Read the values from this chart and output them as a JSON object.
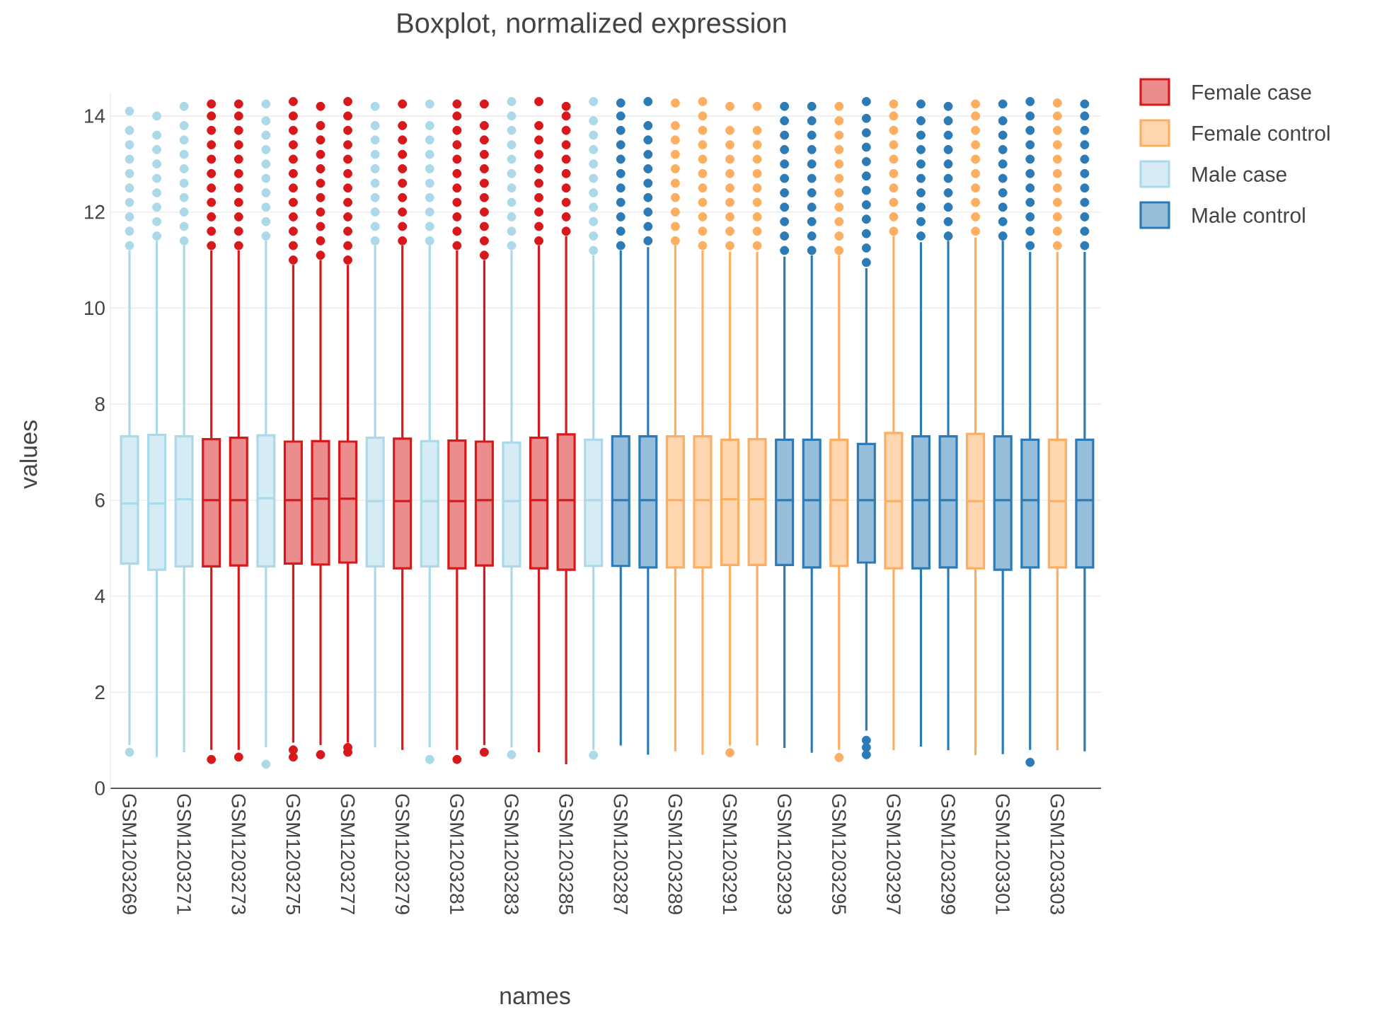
{
  "chart_data": {
    "type": "box",
    "title": "Boxplot, normalized expression",
    "xlabel": "names",
    "ylabel": "values",
    "categories": [
      "GSM1203269",
      null,
      "GSM1203271",
      null,
      "GSM1203273",
      null,
      "GSM1203275",
      null,
      "GSM1203277",
      null,
      "GSM1203279",
      null,
      "GSM1203281",
      null,
      "GSM1203283",
      null,
      "GSM1203285",
      null,
      "GSM1203287",
      null,
      "GSM1203289",
      null,
      "GSM1203291",
      null,
      "GSM1203293",
      null,
      "GSM1203295",
      null,
      "GSM1203297",
      null,
      "GSM1203299",
      null,
      "GSM1203301",
      null,
      "GSM1203303",
      null
    ],
    "ylim": [
      0,
      14.5
    ],
    "yticks": [
      0,
      2,
      4,
      6,
      8,
      10,
      12,
      14
    ],
    "grid": "y",
    "legend": "top right",
    "series": [
      {
        "name": "Female case",
        "color": "#d7191c",
        "boxes": [
          null,
          null,
          null,
          {
            "low": 0.8,
            "q1": 4.62,
            "median": 6.0,
            "q3": 7.27,
            "high": 11.2,
            "outliers": [
              0.6,
              11.3,
              11.6,
              11.9,
              12.2,
              12.5,
              12.8,
              13.1,
              13.4,
              13.7,
              14.0,
              14.25
            ]
          },
          {
            "low": 0.8,
            "q1": 4.64,
            "median": 6.0,
            "q3": 7.3,
            "high": 11.2,
            "outliers": [
              0.65,
              11.3,
              11.6,
              11.9,
              12.2,
              12.5,
              12.8,
              13.1,
              13.4,
              13.7,
              14.0,
              14.25
            ]
          },
          null,
          {
            "low": 0.95,
            "q1": 4.68,
            "median": 6.0,
            "q3": 7.22,
            "high": 10.9,
            "outliers": [
              0.65,
              0.8,
              11.0,
              11.3,
              11.6,
              11.9,
              12.2,
              12.5,
              12.8,
              13.1,
              13.4,
              13.7,
              14.0,
              14.3
            ]
          },
          {
            "low": 0.9,
            "q1": 4.66,
            "median": 6.03,
            "q3": 7.23,
            "high": 11.0,
            "outliers": [
              0.7,
              11.1,
              11.4,
              11.7,
              12.0,
              12.3,
              12.6,
              12.9,
              13.2,
              13.5,
              13.8,
              14.2
            ]
          },
          {
            "low": 0.95,
            "q1": 4.7,
            "median": 6.03,
            "q3": 7.22,
            "high": 10.9,
            "outliers": [
              0.75,
              0.85,
              11.0,
              11.3,
              11.6,
              11.9,
              12.2,
              12.5,
              12.8,
              13.1,
              13.4,
              13.7,
              14.0,
              14.3
            ]
          },
          null,
          {
            "low": 0.8,
            "q1": 4.58,
            "median": 5.98,
            "q3": 7.28,
            "high": 11.3,
            "outliers": [
              11.4,
              11.7,
              12.0,
              12.3,
              12.6,
              12.9,
              13.2,
              13.5,
              13.8,
              14.25
            ]
          },
          null,
          {
            "low": 0.8,
            "q1": 4.58,
            "median": 5.98,
            "q3": 7.24,
            "high": 11.2,
            "outliers": [
              0.6,
              11.3,
              11.6,
              11.9,
              12.2,
              12.5,
              12.8,
              13.1,
              13.4,
              13.7,
              14.0,
              14.25
            ]
          },
          {
            "low": 0.9,
            "q1": 4.64,
            "median": 6.0,
            "q3": 7.22,
            "high": 11.0,
            "outliers": [
              0.75,
              11.1,
              11.4,
              11.7,
              12.0,
              12.3,
              12.6,
              12.9,
              13.2,
              13.5,
              13.8,
              14.25
            ]
          },
          null,
          {
            "low": 0.75,
            "q1": 4.58,
            "median": 6.0,
            "q3": 7.3,
            "high": 11.3,
            "outliers": [
              11.4,
              11.7,
              12.0,
              12.3,
              12.6,
              12.9,
              13.2,
              13.5,
              13.8,
              14.3
            ]
          },
          {
            "low": 0.5,
            "q1": 4.55,
            "median": 6.0,
            "q3": 7.37,
            "high": 11.5,
            "outliers": [
              11.6,
              11.9,
              12.2,
              12.5,
              12.8,
              13.1,
              13.4,
              13.7,
              14.0,
              14.2
            ]
          },
          null,
          null,
          null,
          null,
          null,
          null,
          null,
          null,
          null,
          null,
          null,
          null,
          null,
          null,
          null,
          null,
          null,
          null,
          null
        ]
      },
      {
        "name": "Female control",
        "color": "#fdae61",
        "boxes": [
          null,
          null,
          null,
          null,
          null,
          null,
          null,
          null,
          null,
          null,
          null,
          null,
          null,
          null,
          null,
          null,
          null,
          null,
          null,
          null,
          {
            "low": 0.77,
            "q1": 4.6,
            "median": 6.0,
            "q3": 7.33,
            "high": 11.3,
            "outliers": [
              11.4,
              11.7,
              12.0,
              12.3,
              12.6,
              12.9,
              13.2,
              13.5,
              13.8,
              14.27
            ]
          },
          {
            "low": 0.7,
            "q1": 4.6,
            "median": 6.0,
            "q3": 7.33,
            "high": 11.2,
            "outliers": [
              11.3,
              11.6,
              11.9,
              12.2,
              12.5,
              12.8,
              13.1,
              13.4,
              13.7,
              14.0,
              14.3
            ]
          },
          {
            "low": 0.89,
            "q1": 4.65,
            "median": 6.02,
            "q3": 7.26,
            "high": 11.17,
            "outliers": [
              0.74,
              11.3,
              11.6,
              11.9,
              12.2,
              12.5,
              12.8,
              13.1,
              13.4,
              13.7,
              14.2
            ]
          },
          {
            "low": 0.89,
            "q1": 4.65,
            "median": 6.02,
            "q3": 7.27,
            "high": 11.17,
            "outliers": [
              11.3,
              11.6,
              11.9,
              12.2,
              12.5,
              12.8,
              13.1,
              13.4,
              13.7,
              14.2
            ]
          },
          null,
          null,
          {
            "low": 0.8,
            "q1": 4.63,
            "median": 6.0,
            "q3": 7.26,
            "high": 11.1,
            "outliers": [
              0.64,
              11.2,
              11.5,
              11.8,
              12.1,
              12.4,
              12.7,
              13.0,
              13.3,
              13.6,
              13.9,
              14.2
            ]
          },
          null,
          {
            "low": 0.79,
            "q1": 4.58,
            "median": 5.98,
            "q3": 7.4,
            "high": 11.5,
            "outliers": [
              11.6,
              11.9,
              12.2,
              12.5,
              12.8,
              13.1,
              13.4,
              13.7,
              14.0,
              14.25
            ]
          },
          null,
          null,
          {
            "low": 0.69,
            "q1": 4.58,
            "median": 5.98,
            "q3": 7.38,
            "high": 11.47,
            "outliers": [
              11.6,
              11.9,
              12.2,
              12.5,
              12.8,
              13.1,
              13.4,
              13.7,
              14.0,
              14.25
            ]
          },
          null,
          null,
          {
            "low": 0.79,
            "q1": 4.6,
            "median": 5.98,
            "q3": 7.26,
            "high": 11.17,
            "outliers": [
              11.3,
              11.6,
              11.9,
              12.2,
              12.5,
              12.8,
              13.1,
              13.4,
              13.7,
              14.0,
              14.27
            ]
          },
          null
        ]
      },
      {
        "name": "Male case",
        "color": "#abd9e9",
        "boxes": [
          {
            "low": 0.9,
            "q1": 4.68,
            "median": 5.93,
            "q3": 7.33,
            "high": 11.2,
            "outliers": [
              0.75,
              11.3,
              11.6,
              11.9,
              12.2,
              12.5,
              12.8,
              13.1,
              13.4,
              13.7,
              14.1
            ]
          },
          {
            "low": 0.65,
            "q1": 4.55,
            "median": 5.93,
            "q3": 7.36,
            "high": 11.4,
            "outliers": [
              11.5,
              11.8,
              12.1,
              12.4,
              12.7,
              13.0,
              13.3,
              13.6,
              14.0
            ]
          },
          {
            "low": 0.75,
            "q1": 4.62,
            "median": 6.02,
            "q3": 7.33,
            "high": 11.3,
            "outliers": [
              11.4,
              11.7,
              12.0,
              12.3,
              12.6,
              12.9,
              13.2,
              13.5,
              13.8,
              14.2
            ]
          },
          null,
          null,
          {
            "low": 0.85,
            "q1": 4.62,
            "median": 6.04,
            "q3": 7.35,
            "high": 11.4,
            "outliers": [
              0.5,
              11.5,
              11.8,
              12.1,
              12.4,
              12.7,
              13.0,
              13.3,
              13.6,
              13.9,
              14.25
            ]
          },
          null,
          null,
          null,
          {
            "low": 0.85,
            "q1": 4.62,
            "median": 5.98,
            "q3": 7.3,
            "high": 11.3,
            "outliers": [
              11.4,
              11.7,
              12.0,
              12.3,
              12.6,
              12.9,
              13.2,
              13.5,
              13.8,
              14.2
            ]
          },
          null,
          {
            "low": 0.85,
            "q1": 4.62,
            "median": 5.98,
            "q3": 7.23,
            "high": 11.3,
            "outliers": [
              0.6,
              11.4,
              11.7,
              12.0,
              12.3,
              12.6,
              12.9,
              13.2,
              13.5,
              13.8,
              14.25
            ]
          },
          null,
          null,
          {
            "low": 0.85,
            "q1": 4.62,
            "median": 5.98,
            "q3": 7.2,
            "high": 11.2,
            "outliers": [
              0.7,
              11.3,
              11.6,
              11.9,
              12.2,
              12.5,
              12.8,
              13.1,
              13.4,
              13.7,
              14.0,
              14.3
            ]
          },
          null,
          null,
          {
            "low": 0.8,
            "q1": 4.63,
            "median": 6.0,
            "q3": 7.26,
            "high": 11.1,
            "outliers": [
              0.69,
              11.2,
              11.5,
              11.8,
              12.1,
              12.4,
              12.7,
              13.0,
              13.3,
              13.6,
              13.9,
              14.3
            ]
          },
          null,
          null,
          null,
          null,
          null,
          null,
          null,
          null,
          null,
          null,
          null,
          null,
          null,
          null,
          null,
          null,
          null,
          null
        ]
      },
      {
        "name": "Male control",
        "color": "#2c7bb6",
        "boxes": [
          null,
          null,
          null,
          null,
          null,
          null,
          null,
          null,
          null,
          null,
          null,
          null,
          null,
          null,
          null,
          null,
          null,
          null,
          {
            "low": 0.89,
            "q1": 4.63,
            "median": 6.0,
            "q3": 7.33,
            "high": 11.2,
            "outliers": [
              11.3,
              11.6,
              11.9,
              12.2,
              12.5,
              12.8,
              13.1,
              13.4,
              13.7,
              14.0,
              14.27
            ]
          },
          {
            "low": 0.7,
            "q1": 4.6,
            "median": 6.0,
            "q3": 7.33,
            "high": 11.27,
            "outliers": [
              11.4,
              11.7,
              12.0,
              12.3,
              12.6,
              12.9,
              13.2,
              13.5,
              13.8,
              14.3
            ]
          },
          null,
          null,
          null,
          null,
          {
            "low": 0.84,
            "q1": 4.65,
            "median": 6.0,
            "q3": 7.26,
            "high": 11.07,
            "outliers": [
              11.2,
              11.5,
              11.8,
              12.1,
              12.4,
              12.7,
              13.0,
              13.3,
              13.6,
              13.9,
              14.2
            ]
          },
          {
            "low": 0.74,
            "q1": 4.6,
            "median": 6.0,
            "q3": 7.26,
            "high": 11.1,
            "outliers": [
              11.2,
              11.5,
              11.8,
              12.1,
              12.4,
              12.7,
              13.0,
              13.3,
              13.6,
              13.9,
              14.2
            ]
          },
          null,
          {
            "low": 1.2,
            "q1": 4.7,
            "median": 6.0,
            "q3": 7.17,
            "high": 10.83,
            "outliers": [
              0.7,
              0.85,
              1.0,
              10.95,
              11.25,
              11.55,
              11.85,
              12.15,
              12.45,
              12.75,
              13.05,
              13.35,
              13.65,
              13.95,
              14.3
            ]
          },
          null,
          {
            "low": 0.87,
            "q1": 4.58,
            "median": 6.0,
            "q3": 7.33,
            "high": 11.37,
            "outliers": [
              11.5,
              11.8,
              12.1,
              12.4,
              12.7,
              13.0,
              13.3,
              13.6,
              13.9,
              14.25
            ]
          },
          {
            "low": 0.79,
            "q1": 4.6,
            "median": 6.0,
            "q3": 7.33,
            "high": 11.4,
            "outliers": [
              11.5,
              11.8,
              12.1,
              12.4,
              12.7,
              13.0,
              13.3,
              13.6,
              13.9,
              14.2
            ]
          },
          null,
          {
            "low": 0.71,
            "q1": 4.55,
            "median": 6.0,
            "q3": 7.33,
            "high": 11.4,
            "outliers": [
              11.5,
              11.8,
              12.1,
              12.4,
              12.7,
              13.0,
              13.3,
              13.6,
              13.9,
              14.25
            ]
          },
          {
            "low": 0.8,
            "q1": 4.6,
            "median": 6.0,
            "q3": 7.26,
            "high": 11.17,
            "outliers": [
              0.54,
              11.3,
              11.6,
              11.9,
              12.2,
              12.5,
              12.8,
              13.1,
              13.4,
              13.7,
              14.0,
              14.3
            ]
          },
          null,
          {
            "low": 0.77,
            "q1": 4.6,
            "median": 6.0,
            "q3": 7.26,
            "high": 11.17,
            "outliers": [
              11.3,
              11.6,
              11.9,
              12.2,
              12.5,
              12.8,
              13.1,
              13.4,
              13.7,
              14.0,
              14.25
            ]
          }
        ]
      }
    ]
  }
}
